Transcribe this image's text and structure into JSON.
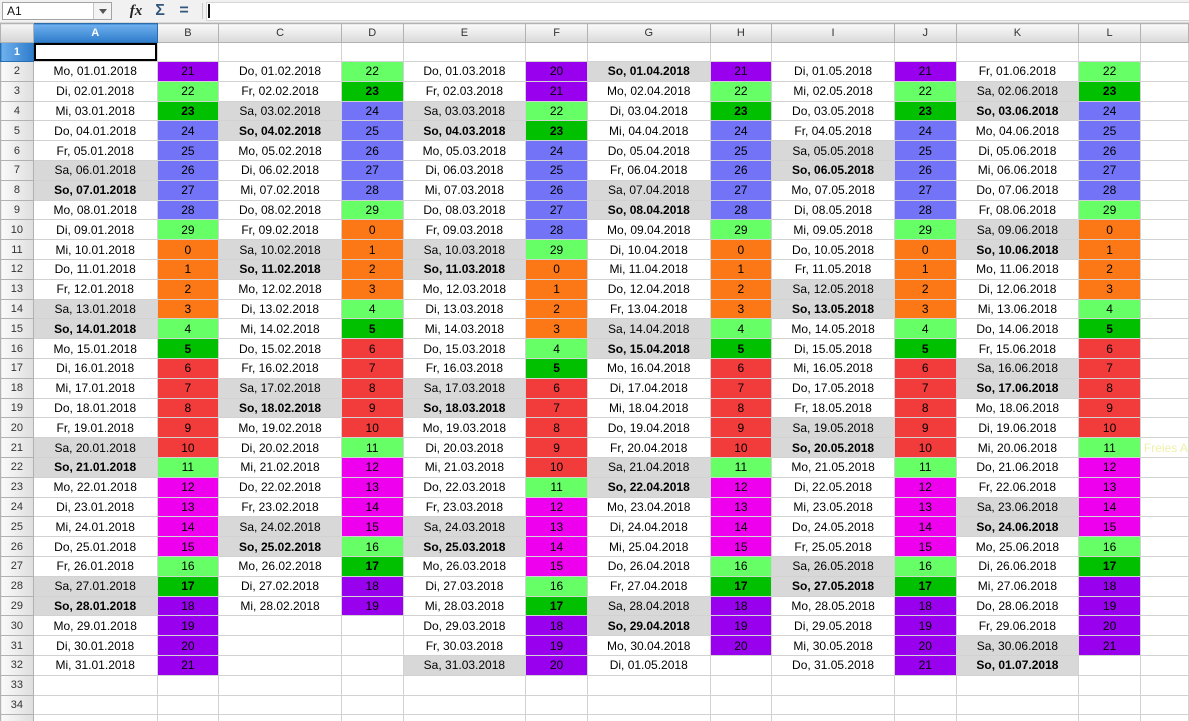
{
  "toolbar": {
    "name_box": "A1",
    "function_wizard_label": "fx",
    "sum_label": "Σ",
    "formula_label": "=",
    "formula_value": ""
  },
  "sheet": {
    "columns": [
      "A",
      "B",
      "C",
      "D",
      "E",
      "F",
      "G",
      "H",
      "I",
      "J",
      "K",
      "L"
    ],
    "row_numbers": [
      1,
      2,
      3,
      4,
      5,
      6,
      7,
      8,
      9,
      10,
      11,
      12,
      13,
      14,
      15,
      16,
      17,
      18,
      19,
      20,
      21,
      22,
      23,
      24,
      25,
      26,
      27,
      28,
      29,
      30,
      31,
      32,
      33,
      34
    ],
    "selected_cell": "A1",
    "selected_column": "A",
    "selected_row": 1
  },
  "months": [
    {
      "dates": [
        "Mo, 01.01.2018",
        "Di, 02.01.2018",
        "Mi, 03.01.2018",
        "Do, 04.01.2018",
        "Fr, 05.01.2018",
        "Sa, 06.01.2018",
        "So, 07.01.2018",
        "Mo, 08.01.2018",
        "Di, 09.01.2018",
        "Mi, 10.01.2018",
        "Do, 11.01.2018",
        "Fr, 12.01.2018",
        "Sa, 13.01.2018",
        "So, 14.01.2018",
        "Mo, 15.01.2018",
        "Di, 16.01.2018",
        "Mi, 17.01.2018",
        "Do, 18.01.2018",
        "Fr, 19.01.2018",
        "Sa, 20.01.2018",
        "So, 21.01.2018",
        "Mo, 22.01.2018",
        "Di, 23.01.2018",
        "Mi, 24.01.2018",
        "Do, 25.01.2018",
        "Fr, 26.01.2018",
        "Sa, 27.01.2018",
        "So, 28.01.2018",
        "Mo, 29.01.2018",
        "Di, 30.01.2018",
        "Mi, 31.01.2018"
      ],
      "values": [
        21,
        22,
        23,
        24,
        25,
        26,
        27,
        28,
        29,
        0,
        1,
        2,
        3,
        4,
        5,
        6,
        7,
        8,
        9,
        10,
        11,
        12,
        13,
        14,
        15,
        16,
        17,
        18,
        19,
        20,
        21
      ]
    },
    {
      "dates": [
        "Do, 01.02.2018",
        "Fr, 02.02.2018",
        "Sa, 03.02.2018",
        "So, 04.02.2018",
        "Mo, 05.02.2018",
        "Di, 06.02.2018",
        "Mi, 07.02.2018",
        "Do, 08.02.2018",
        "Fr, 09.02.2018",
        "Sa, 10.02.2018",
        "So, 11.02.2018",
        "Mo, 12.02.2018",
        "Di, 13.02.2018",
        "Mi, 14.02.2018",
        "Do, 15.02.2018",
        "Fr, 16.02.2018",
        "Sa, 17.02.2018",
        "So, 18.02.2018",
        "Mo, 19.02.2018",
        "Di, 20.02.2018",
        "Mi, 21.02.2018",
        "Do, 22.02.2018",
        "Fr, 23.02.2018",
        "Sa, 24.02.2018",
        "So, 25.02.2018",
        "Mo, 26.02.2018",
        "Di, 27.02.2018",
        "Mi, 28.02.2018"
      ],
      "values": [
        22,
        23,
        24,
        25,
        26,
        27,
        28,
        29,
        0,
        1,
        2,
        3,
        4,
        5,
        6,
        7,
        8,
        9,
        10,
        11,
        12,
        13,
        14,
        15,
        16,
        17,
        18,
        19
      ]
    },
    {
      "dates": [
        "Do, 01.03.2018",
        "Fr, 02.03.2018",
        "Sa, 03.03.2018",
        "So, 04.03.2018",
        "Mo, 05.03.2018",
        "Di, 06.03.2018",
        "Mi, 07.03.2018",
        "Do, 08.03.2018",
        "Fr, 09.03.2018",
        "Sa, 10.03.2018",
        "So, 11.03.2018",
        "Mo, 12.03.2018",
        "Di, 13.03.2018",
        "Mi, 14.03.2018",
        "Do, 15.03.2018",
        "Fr, 16.03.2018",
        "Sa, 17.03.2018",
        "So, 18.03.2018",
        "Mo, 19.03.2018",
        "Di, 20.03.2018",
        "Mi, 21.03.2018",
        "Do, 22.03.2018",
        "Fr, 23.03.2018",
        "Sa, 24.03.2018",
        "So, 25.03.2018",
        "Mo, 26.03.2018",
        "Di, 27.03.2018",
        "Mi, 28.03.2018",
        "Do, 29.03.2018",
        "Fr, 30.03.2018",
        "Sa, 31.03.2018"
      ],
      "values": [
        20,
        21,
        22,
        23,
        24,
        25,
        26,
        27,
        28,
        29,
        0,
        1,
        2,
        3,
        4,
        5,
        6,
        7,
        8,
        9,
        10,
        11,
        12,
        13,
        14,
        15,
        16,
        17,
        18,
        19,
        20
      ]
    },
    {
      "dates": [
        "So, 01.04.2018",
        "Mo, 02.04.2018",
        "Di, 03.04.2018",
        "Mi, 04.04.2018",
        "Do, 05.04.2018",
        "Fr, 06.04.2018",
        "Sa, 07.04.2018",
        "So, 08.04.2018",
        "Mo, 09.04.2018",
        "Di, 10.04.2018",
        "Mi, 11.04.2018",
        "Do, 12.04.2018",
        "Fr, 13.04.2018",
        "Sa, 14.04.2018",
        "So, 15.04.2018",
        "Mo, 16.04.2018",
        "Di, 17.04.2018",
        "Mi, 18.04.2018",
        "Do, 19.04.2018",
        "Fr, 20.04.2018",
        "Sa, 21.04.2018",
        "So, 22.04.2018",
        "Mo, 23.04.2018",
        "Di, 24.04.2018",
        "Mi, 25.04.2018",
        "Do, 26.04.2018",
        "Fr, 27.04.2018",
        "Sa, 28.04.2018",
        "So, 29.04.2018",
        "Mo, 30.04.2018",
        "Di, 01.05.2018"
      ],
      "values": [
        21,
        22,
        23,
        24,
        25,
        26,
        27,
        28,
        29,
        0,
        1,
        2,
        3,
        4,
        5,
        6,
        7,
        8,
        9,
        10,
        11,
        12,
        13,
        14,
        15,
        16,
        17,
        18,
        19,
        20,
        null
      ]
    },
    {
      "dates": [
        "Di, 01.05.2018",
        "Mi, 02.05.2018",
        "Do, 03.05.2018",
        "Fr, 04.05.2018",
        "Sa, 05.05.2018",
        "So, 06.05.2018",
        "Mo, 07.05.2018",
        "Di, 08.05.2018",
        "Mi, 09.05.2018",
        "Do, 10.05.2018",
        "Fr, 11.05.2018",
        "Sa, 12.05.2018",
        "So, 13.05.2018",
        "Mo, 14.05.2018",
        "Di, 15.05.2018",
        "Mi, 16.05.2018",
        "Do, 17.05.2018",
        "Fr, 18.05.2018",
        "Sa, 19.05.2018",
        "So, 20.05.2018",
        "Mo, 21.05.2018",
        "Di, 22.05.2018",
        "Mi, 23.05.2018",
        "Do, 24.05.2018",
        "Fr, 25.05.2018",
        "Sa, 26.05.2018",
        "So, 27.05.2018",
        "Mo, 28.05.2018",
        "Di, 29.05.2018",
        "Mi, 30.05.2018",
        "Do, 31.05.2018"
      ],
      "values": [
        21,
        22,
        23,
        24,
        25,
        26,
        27,
        28,
        29,
        0,
        1,
        2,
        3,
        4,
        5,
        6,
        7,
        8,
        9,
        10,
        11,
        12,
        13,
        14,
        15,
        16,
        17,
        18,
        19,
        20,
        21
      ]
    },
    {
      "dates": [
        "Fr, 01.06.2018",
        "Sa, 02.06.2018",
        "So, 03.06.2018",
        "Mo, 04.06.2018",
        "Di, 05.06.2018",
        "Mi, 06.06.2018",
        "Do, 07.06.2018",
        "Fr, 08.06.2018",
        "Sa, 09.06.2018",
        "So, 10.06.2018",
        "Mo, 11.06.2018",
        "Di, 12.06.2018",
        "Mi, 13.06.2018",
        "Do, 14.06.2018",
        "Fr, 15.06.2018",
        "Sa, 16.06.2018",
        "So, 17.06.2018",
        "Mo, 18.06.2018",
        "Di, 19.06.2018",
        "Mi, 20.06.2018",
        "Do, 21.06.2018",
        "Fr, 22.06.2018",
        "Sa, 23.06.2018",
        "So, 24.06.2018",
        "Mo, 25.06.2018",
        "Di, 26.06.2018",
        "Mi, 27.06.2018",
        "Do, 28.06.2018",
        "Fr, 29.06.2018",
        "Sa, 30.06.2018",
        "So, 01.07.2018"
      ],
      "values": [
        22,
        23,
        24,
        25,
        26,
        27,
        28,
        29,
        0,
        1,
        2,
        3,
        4,
        5,
        6,
        7,
        8,
        9,
        10,
        11,
        12,
        13,
        14,
        15,
        16,
        17,
        18,
        19,
        20,
        21,
        null
      ]
    }
  ],
  "value_colors": {
    "orange": [
      0,
      1,
      2,
      3
    ],
    "light_green": [
      4,
      11,
      16,
      22,
      29
    ],
    "dark_green": [
      5,
      17,
      23
    ],
    "red": [
      6,
      7,
      8,
      9,
      10
    ],
    "magenta": [
      12,
      13,
      14,
      15
    ],
    "purple": [
      18,
      19,
      20,
      21
    ],
    "blue": [
      24,
      25,
      26,
      27,
      28
    ]
  },
  "palette": {
    "orange": "#FC7715",
    "light_green": "#66FF66",
    "dark_green": "#00C000",
    "red": "#F23B3B",
    "magenta": "#EE00EE",
    "purple": "#9900EE",
    "blue": "#7373F7",
    "weekend_gray": "#D8D8D8",
    "selected_header_blue": "#3D86CF",
    "note_yellow": "#EFEFA9"
  },
  "note": {
    "text": "Freies A",
    "row": 21
  }
}
